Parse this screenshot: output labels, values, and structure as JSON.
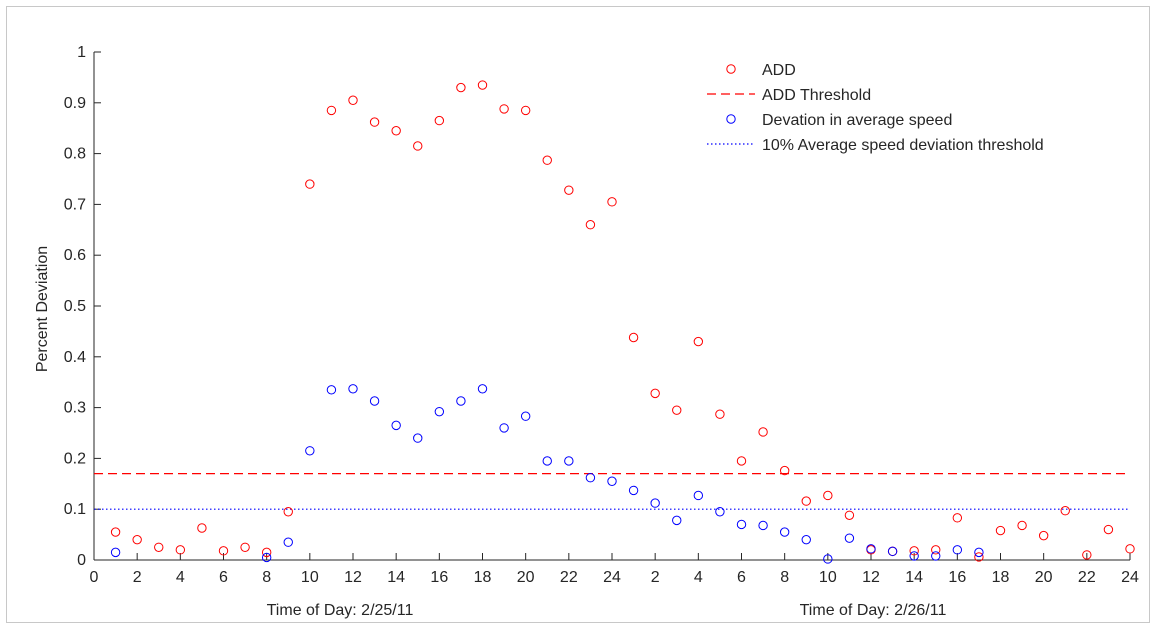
{
  "chart_data": {
    "type": "scatter",
    "title": "",
    "ylabel": "Percent Deviation",
    "xlabel_day1": "Time of Day: 2/25/11",
    "xlabel_day2": "Time of Day: 2/26/11",
    "ylim": [
      0,
      1
    ],
    "xlim": [
      0,
      48
    ],
    "yticks": [
      "0",
      "0.1",
      "0.2",
      "0.3",
      "0.4",
      "0.5",
      "0.6",
      "0.7",
      "0.8",
      "0.9",
      "1"
    ],
    "xtick_labels": [
      "0",
      "2",
      "4",
      "6",
      "8",
      "10",
      "12",
      "14",
      "16",
      "18",
      "20",
      "22",
      "24",
      "2",
      "4",
      "6",
      "8",
      "10",
      "12",
      "14",
      "16",
      "18",
      "20",
      "22",
      "24"
    ],
    "legend_position": "top-right",
    "grid": false,
    "series": [
      {
        "name": "ADD",
        "marker": "circle",
        "color": "#ff0000",
        "x": [
          1,
          2,
          3,
          4,
          5,
          6,
          7,
          8,
          9,
          10,
          11,
          12,
          13,
          14,
          15,
          16,
          17,
          18,
          19,
          20,
          21,
          22,
          23,
          24,
          25,
          26,
          27,
          28,
          29,
          30,
          31,
          32,
          33,
          34,
          35,
          36,
          37,
          38,
          39,
          40,
          41,
          42,
          43,
          44,
          45,
          46,
          47,
          48
        ],
        "values": [
          0.055,
          0.04,
          0.025,
          0.02,
          0.063,
          0.018,
          0.025,
          0.015,
          0.095,
          0.74,
          0.885,
          0.905,
          0.862,
          0.845,
          0.815,
          0.865,
          0.93,
          0.935,
          0.888,
          0.885,
          0.787,
          0.728,
          0.66,
          0.705,
          0.438,
          0.328,
          0.295,
          0.43,
          0.287,
          0.195,
          0.252,
          0.176,
          0.116,
          0.127,
          0.088,
          0.02,
          0.017,
          0.018,
          0.02,
          0.083,
          0.006,
          0.058,
          0.068,
          0.048,
          0.097,
          0.01,
          0.06,
          0.022
        ]
      },
      {
        "name": "ADD Threshold",
        "line": "dashed",
        "color": "#ff0000",
        "value": 0.17
      },
      {
        "name": "Devation in average speed",
        "marker": "circle",
        "color": "#0000ff",
        "x": [
          1,
          8,
          9,
          10,
          11,
          12,
          13,
          14,
          15,
          16,
          17,
          18,
          19,
          20,
          21,
          22,
          23,
          24,
          25,
          26,
          27,
          28,
          29,
          30,
          31,
          32,
          33,
          34,
          35,
          36,
          37,
          38,
          39,
          40,
          41
        ],
        "values": [
          0.015,
          0.005,
          0.035,
          0.215,
          0.335,
          0.337,
          0.313,
          0.265,
          0.24,
          0.292,
          0.313,
          0.337,
          0.26,
          0.283,
          0.195,
          0.195,
          0.162,
          0.155,
          0.137,
          0.112,
          0.078,
          0.127,
          0.095,
          0.07,
          0.068,
          0.055,
          0.04,
          0.002,
          0.043,
          0.022,
          0.017,
          0.008,
          0.008,
          0.02,
          0.015
        ]
      },
      {
        "name": "10% Average speed deviation threshold",
        "line": "dotted",
        "color": "#0000ff",
        "value": 0.1
      }
    ]
  }
}
